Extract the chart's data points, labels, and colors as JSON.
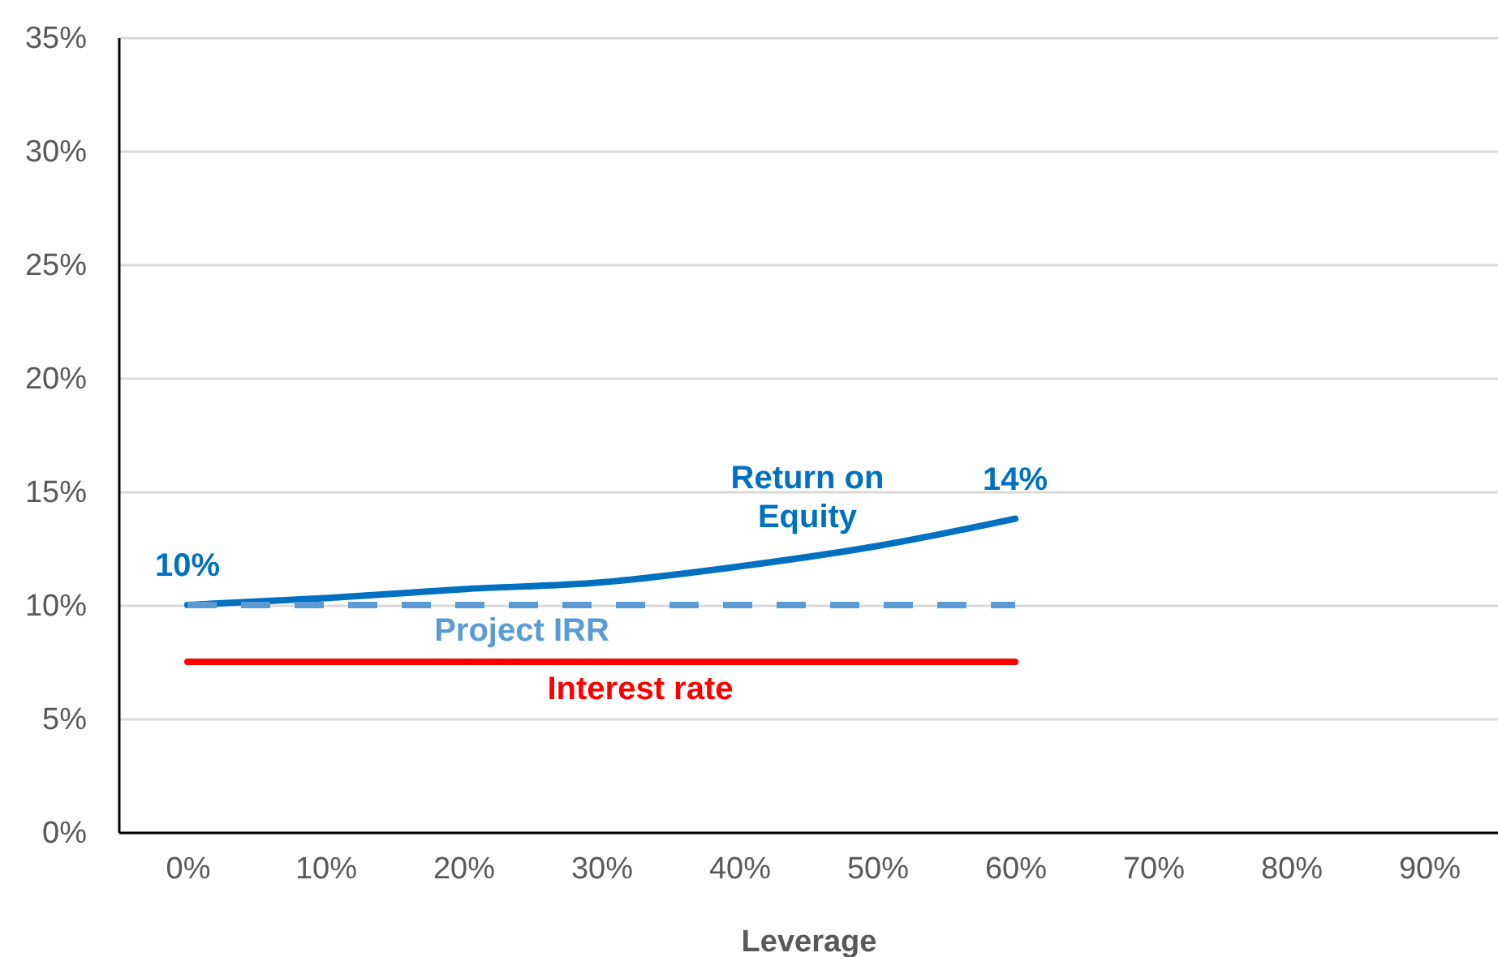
{
  "chart_data": {
    "type": "line",
    "xlabel": "Leverage",
    "categories": [
      "0%",
      "10%",
      "20%",
      "30%",
      "40%",
      "50%",
      "60%",
      "70%",
      "80%",
      "90%"
    ],
    "series": [
      {
        "name": "Return on Equity",
        "color": "#0070c0",
        "line_style": "solid",
        "values": [
          10,
          10.3,
          10.7,
          11.0,
          11.7,
          12.6,
          13.8,
          null,
          null,
          null
        ],
        "value_labels": [
          "10%",
          null,
          null,
          null,
          null,
          null,
          "14%",
          null,
          null,
          null
        ]
      },
      {
        "name": "Project IRR",
        "color": "#5b9bd5",
        "line_style": "dashed",
        "values": [
          10,
          10,
          10,
          10,
          10,
          10,
          10,
          null,
          null,
          null
        ]
      },
      {
        "name": "Interest rate",
        "color": "#ff0000",
        "line_style": "solid",
        "values": [
          7.5,
          7.5,
          7.5,
          7.5,
          7.5,
          7.5,
          7.5,
          null,
          null,
          null
        ]
      }
    ],
    "ylim": [
      0,
      35
    ],
    "yticks": [
      {
        "value": 0,
        "label": "0%"
      },
      {
        "value": 5,
        "label": "5%"
      },
      {
        "value": 10,
        "label": "10%"
      },
      {
        "value": 15,
        "label": "15%"
      },
      {
        "value": 20,
        "label": "20%"
      },
      {
        "value": 25,
        "label": "25%"
      },
      {
        "value": 30,
        "label": "30%"
      },
      {
        "value": 35,
        "label": "35%"
      }
    ],
    "grid": "y",
    "legend": false,
    "marker": "none"
  }
}
